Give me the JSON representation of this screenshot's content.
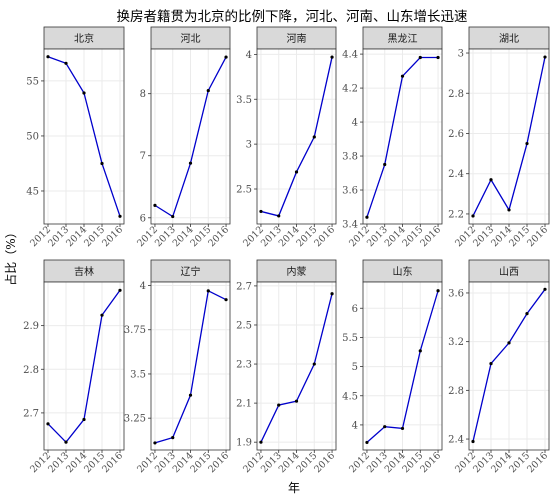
{
  "figure": {
    "title": "换房者籍贯为北京的比例下降，河北、河南、山东增长迅速",
    "xlabel": "年",
    "ylabel": "占比（%）"
  },
  "colors": {
    "line": "#0000cc",
    "point": "#000000",
    "panel_background": "#ffffff",
    "grid": "#ebebeb",
    "strip_fill": "#d9d9d9",
    "border": "#333333"
  },
  "chart_data": [
    {
      "type": "line",
      "title": "北京",
      "categories": [
        "2012",
        "2013",
        "2014",
        "2015",
        "2016"
      ],
      "values": [
        57.2,
        56.6,
        53.9,
        47.5,
        42.7
      ],
      "yticks": [
        45,
        50,
        55
      ],
      "ylim": [
        42.0,
        57.9
      ],
      "grid": true
    },
    {
      "type": "line",
      "title": "河北",
      "categories": [
        "2012",
        "2013",
        "2014",
        "2015",
        "2016"
      ],
      "values": [
        6.2,
        6.02,
        6.88,
        8.05,
        8.59
      ],
      "yticks": [
        6,
        7,
        8
      ],
      "ylim": [
        5.9,
        8.72
      ],
      "grid": true
    },
    {
      "type": "line",
      "title": "河南",
      "categories": [
        "2012",
        "2013",
        "2014",
        "2015",
        "2016"
      ],
      "values": [
        2.25,
        2.2,
        2.69,
        3.08,
        3.97
      ],
      "yticks": [
        2.5,
        3.0,
        3.5,
        4.0
      ],
      "ylim": [
        2.11,
        4.06
      ],
      "grid": true
    },
    {
      "type": "line",
      "title": "黑龙江",
      "categories": [
        "2012",
        "2013",
        "2014",
        "2015",
        "2016"
      ],
      "values": [
        3.44,
        3.75,
        4.27,
        4.38,
        4.38
      ],
      "yticks": [
        3.4,
        3.6,
        3.8,
        4.0,
        4.2,
        4.4
      ],
      "ylim": [
        3.4,
        4.43
      ],
      "grid": true
    },
    {
      "type": "line",
      "title": "湖北",
      "categories": [
        "2012",
        "2013",
        "2014",
        "2015",
        "2016"
      ],
      "values": [
        2.19,
        2.37,
        2.22,
        2.55,
        2.98
      ],
      "yticks": [
        2.2,
        2.4,
        2.6,
        2.8,
        3.0
      ],
      "ylim": [
        2.15,
        3.02
      ],
      "grid": true
    },
    {
      "type": "line",
      "title": "吉林",
      "categories": [
        "2012",
        "2013",
        "2014",
        "2015",
        "2016"
      ],
      "values": [
        2.675,
        2.633,
        2.685,
        2.924,
        2.981
      ],
      "yticks": [
        2.7,
        2.8,
        2.9
      ],
      "ylim": [
        2.615,
        3.0
      ],
      "grid": true
    },
    {
      "type": "line",
      "title": "辽宁",
      "categories": [
        "2012",
        "2013",
        "2014",
        "2015",
        "2016"
      ],
      "values": [
        3.11,
        3.14,
        3.38,
        3.97,
        3.92
      ],
      "yticks": [
        3.25,
        3.5,
        3.75,
        4.0
      ],
      "ylim": [
        3.07,
        4.02
      ],
      "grid": true
    },
    {
      "type": "line",
      "title": "内蒙",
      "categories": [
        "2012",
        "2013",
        "2014",
        "2015",
        "2016"
      ],
      "values": [
        1.9,
        2.09,
        2.11,
        2.3,
        2.66
      ],
      "yticks": [
        1.9,
        2.1,
        2.3,
        2.5,
        2.7
      ],
      "ylim": [
        1.86,
        2.72
      ],
      "grid": true
    },
    {
      "type": "line",
      "title": "山东",
      "categories": [
        "2012",
        "2013",
        "2014",
        "2015",
        "2016"
      ],
      "values": [
        3.7,
        3.97,
        3.94,
        5.27,
        6.3
      ],
      "yticks": [
        4.0,
        4.5,
        5.0,
        5.5,
        6.0
      ],
      "ylim": [
        3.57,
        6.45
      ],
      "grid": true
    },
    {
      "type": "line",
      "title": "山西",
      "categories": [
        "2012",
        "2013",
        "2014",
        "2015",
        "2016"
      ],
      "values": [
        2.38,
        3.02,
        3.19,
        3.43,
        3.63
      ],
      "yticks": [
        2.4,
        2.8,
        3.2,
        3.6
      ],
      "ylim": [
        2.31,
        3.69
      ],
      "grid": true
    }
  ]
}
